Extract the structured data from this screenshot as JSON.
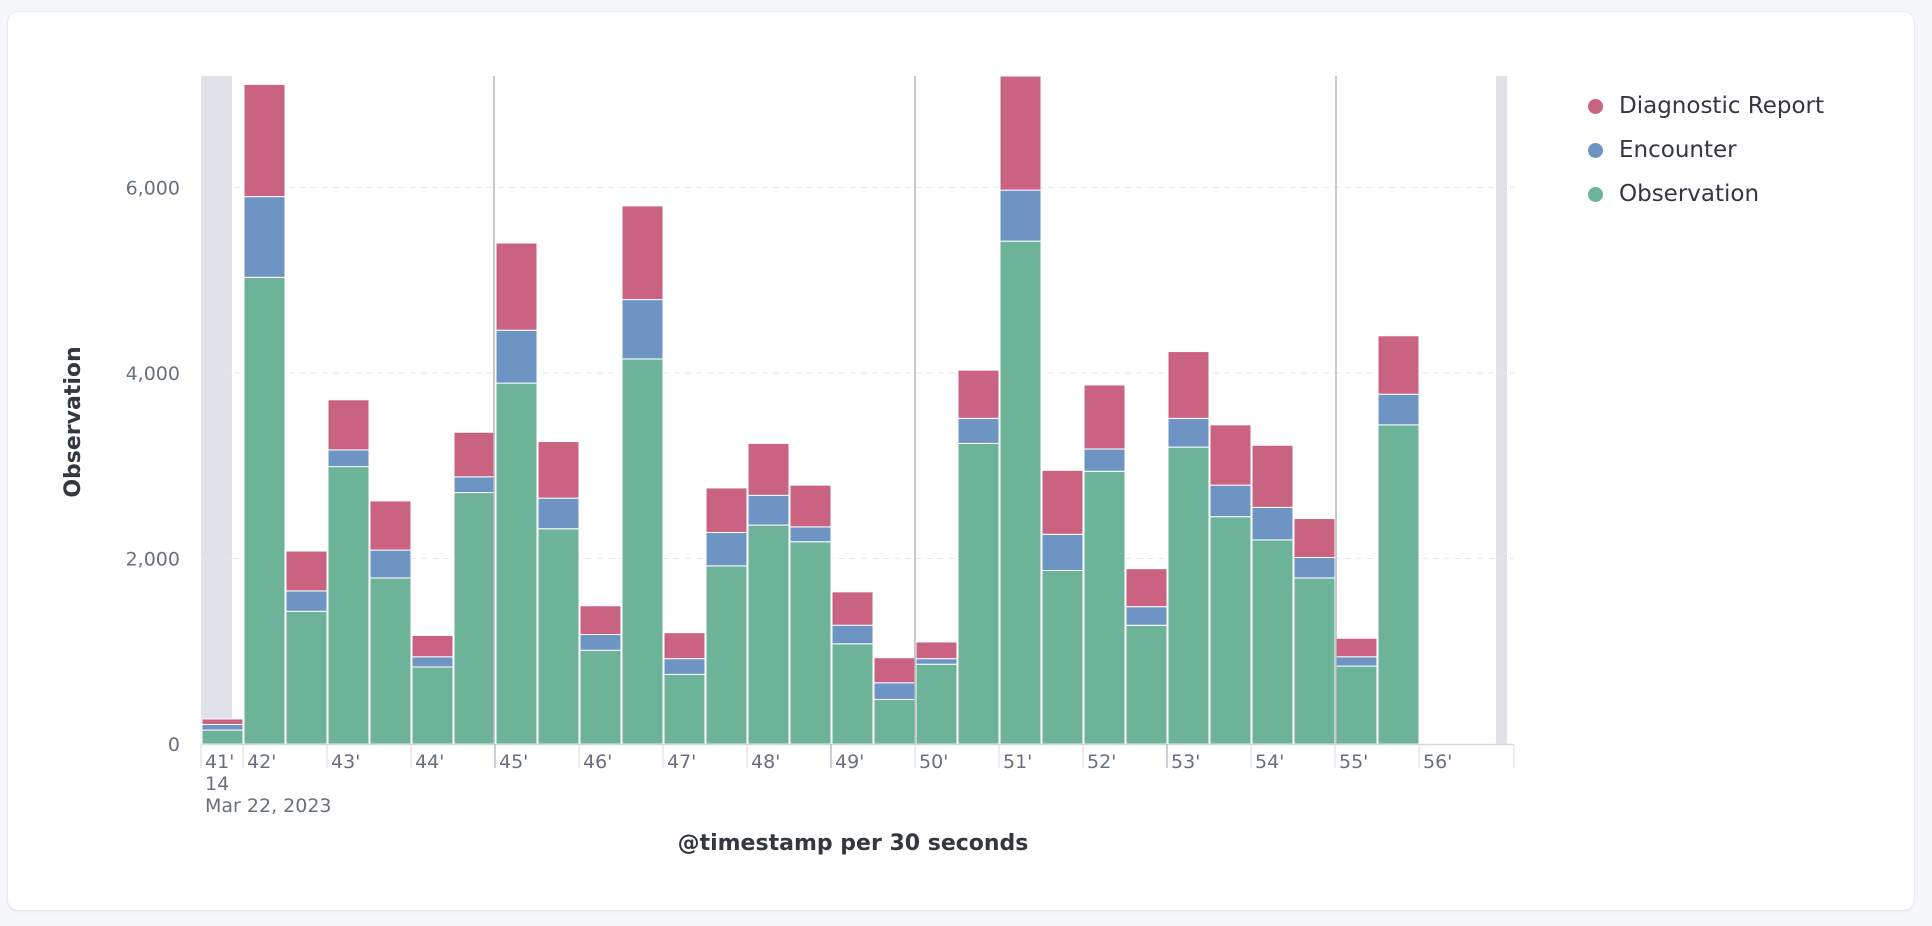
{
  "legend": [
    {
      "name": "Diagnostic Report",
      "color": "#ca6382"
    },
    {
      "name": "Encounter",
      "color": "#6d94c3"
    },
    {
      "name": "Observation",
      "color": "#6cb399"
    }
  ],
  "chart_data": {
    "type": "bar",
    "stacked": true,
    "xlabel": "@timestamp per 30 seconds",
    "ylabel": "Observation",
    "ylim": [
      0,
      7200
    ],
    "yticks": [
      "0",
      "2,000",
      "4,000",
      "6,000"
    ],
    "ytick_values": [
      0,
      2000,
      4000,
      6000
    ],
    "grid": true,
    "legend_position": "top-right",
    "x_ticks": [
      "41'",
      "42'",
      "43'",
      "44'",
      "45'",
      "46'",
      "47'",
      "48'",
      "49'",
      "50'",
      "51'",
      "52'",
      "53'",
      "54'",
      "55'",
      "56'"
    ],
    "x_tick_sub": [
      "14",
      "Mar 22, 2023"
    ],
    "categories": [
      "41:30",
      "42:00",
      "42:30",
      "43:00",
      "43:30",
      "44:00",
      "44:30",
      "45:00",
      "45:30",
      "46:00",
      "46:30",
      "47:00",
      "47:30",
      "48:00",
      "48:30",
      "49:00",
      "49:30",
      "50:00",
      "50:30",
      "51:00",
      "51:30",
      "52:00",
      "52:30",
      "53:00",
      "53:30",
      "54:00",
      "54:30",
      "55:00",
      "55:30"
    ],
    "series": [
      {
        "name": "Observation",
        "values": [
          150,
          5030,
          1430,
          2990,
          1790,
          830,
          2710,
          3890,
          2320,
          1010,
          4150,
          750,
          1920,
          2360,
          2180,
          1080,
          480,
          860,
          3240,
          5420,
          1870,
          2940,
          1280,
          3200,
          2450,
          2200,
          1790,
          840,
          3440
        ]
      },
      {
        "name": "Encounter",
        "values": [
          60,
          870,
          220,
          180,
          300,
          110,
          170,
          570,
          330,
          170,
          640,
          170,
          360,
          320,
          160,
          200,
          180,
          60,
          270,
          550,
          390,
          240,
          200,
          310,
          340,
          350,
          220,
          100,
          330
        ]
      },
      {
        "name": "Diagnostic Report",
        "values": [
          60,
          1210,
          430,
          540,
          530,
          230,
          480,
          940,
          610,
          310,
          1010,
          280,
          480,
          560,
          450,
          360,
          270,
          180,
          520,
          1230,
          690,
          690,
          410,
          720,
          650,
          670,
          420,
          200,
          630
        ]
      }
    ]
  }
}
